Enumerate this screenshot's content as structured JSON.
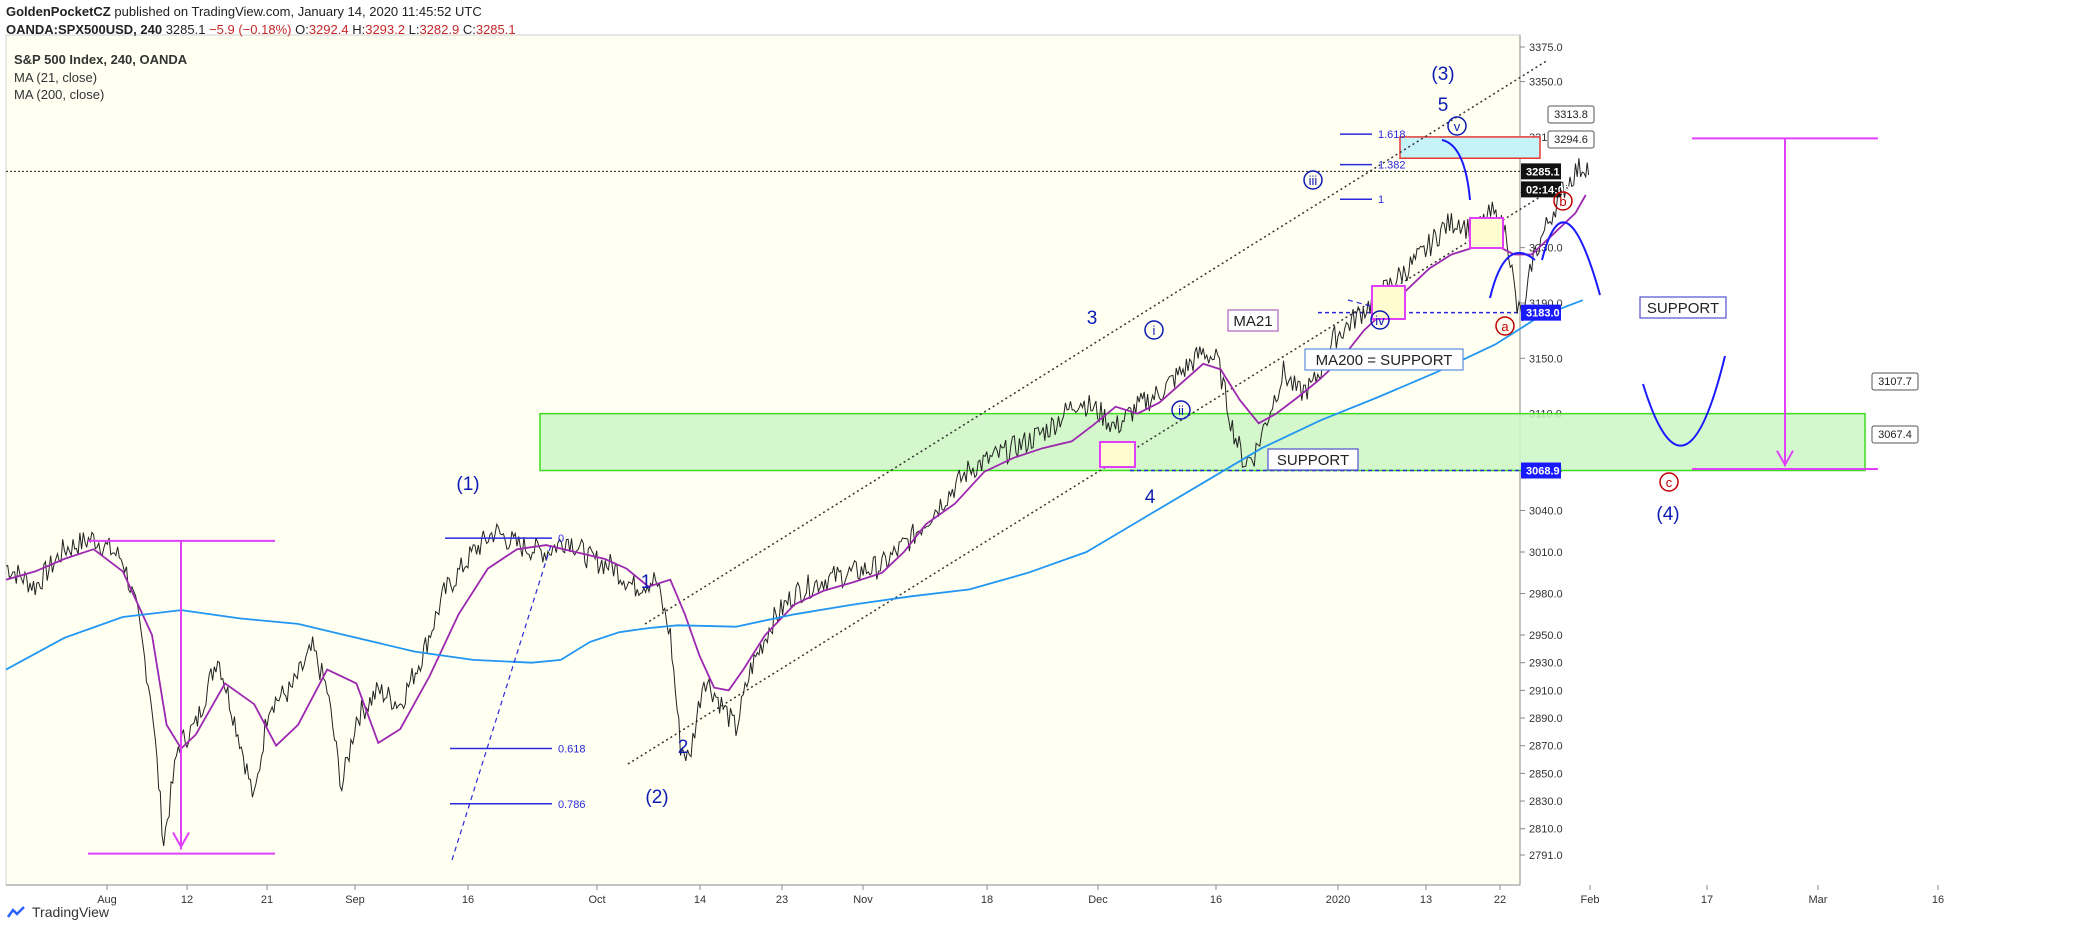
{
  "header": {
    "author": "GoldenPocketCZ",
    "published": "published on TradingView.com, January 14, 2020 11:45:52 UTC",
    "symbol": "OANDA:SPX500USD, 240",
    "last": "3285.1",
    "change": "−5.9 (−0.18%)",
    "o_label": "O:",
    "o": "3292.4",
    "h_label": "H:",
    "h": "3293.2",
    "l_label": "L:",
    "l": "3282.9",
    "c_label": "C:",
    "c": "3285.1"
  },
  "legend": {
    "title": "S&P 500 Index, 240, OANDA",
    "ma21": "MA (21, close)",
    "ma200": "MA (200, close)"
  },
  "footer": {
    "brand": "TradingView"
  },
  "colors": {
    "price": "#222222",
    "ma21": "#9c27b0",
    "ma200": "#2196f3",
    "wave": "#0d1bb5",
    "abc": "#c00000",
    "magenta": "#e040fb",
    "zone_green": "#ccf7c4",
    "zone_border": "#3ddc1f",
    "plot_bg": "#fffff2"
  },
  "chart_data": {
    "type": "line",
    "title": "S&P 500 Index, 240, OANDA",
    "x_ticks": [
      "Aug",
      "12",
      "21",
      "Sep",
      "16",
      "Oct",
      "14",
      "23",
      "Nov",
      "18",
      "Dec",
      "16",
      "2020",
      "13",
      "22",
      "Feb",
      "17",
      "Mar",
      "16"
    ],
    "y_ticks": [
      2791.0,
      2810.0,
      2830.0,
      2850.0,
      2870.0,
      2890.0,
      2910.0,
      2930.0,
      2950.0,
      2980.0,
      3010.0,
      3040.0,
      3070.0,
      3110.0,
      3150.0,
      3190.0,
      3230.0,
      3270.0,
      3310.0,
      3350.0,
      3375.0
    ],
    "ylim": [
      2780,
      3395
    ],
    "series": [
      {
        "name": "MA (21, close)",
        "key": "ma21",
        "points": [
          [
            0,
            2990
          ],
          [
            20,
            2996
          ],
          [
            40,
            3005
          ],
          [
            60,
            3012
          ],
          [
            80,
            2996
          ],
          [
            100,
            2950
          ],
          [
            110,
            2885
          ],
          [
            120,
            2868
          ],
          [
            130,
            2878
          ],
          [
            150,
            2915
          ],
          [
            170,
            2900
          ],
          [
            185,
            2870
          ],
          [
            200,
            2885
          ],
          [
            220,
            2925
          ],
          [
            240,
            2915
          ],
          [
            255,
            2872
          ],
          [
            270,
            2882
          ],
          [
            290,
            2920
          ],
          [
            310,
            2965
          ],
          [
            330,
            2998
          ],
          [
            350,
            3012
          ],
          [
            370,
            3015
          ],
          [
            390,
            3010
          ],
          [
            410,
            3005
          ],
          [
            425,
            2998
          ],
          [
            440,
            2985
          ],
          [
            455,
            2990
          ],
          [
            465,
            2965
          ],
          [
            475,
            2935
          ],
          [
            485,
            2912
          ],
          [
            495,
            2910
          ],
          [
            505,
            2925
          ],
          [
            520,
            2950
          ],
          [
            540,
            2972
          ],
          [
            560,
            2982
          ],
          [
            580,
            2988
          ],
          [
            600,
            2995
          ],
          [
            615,
            3010
          ],
          [
            630,
            3030
          ],
          [
            650,
            3045
          ],
          [
            670,
            3068
          ],
          [
            690,
            3078
          ],
          [
            710,
            3085
          ],
          [
            730,
            3090
          ],
          [
            745,
            3102
          ],
          [
            760,
            3115
          ],
          [
            775,
            3110
          ],
          [
            790,
            3118
          ],
          [
            805,
            3132
          ],
          [
            820,
            3146
          ],
          [
            832,
            3142
          ],
          [
            845,
            3120
          ],
          [
            858,
            3103
          ],
          [
            870,
            3110
          ],
          [
            885,
            3122
          ],
          [
            900,
            3135
          ],
          [
            915,
            3150
          ],
          [
            930,
            3170
          ],
          [
            945,
            3185
          ],
          [
            960,
            3200
          ],
          [
            975,
            3215
          ],
          [
            990,
            3225
          ],
          [
            1005,
            3230
          ],
          [
            1020,
            3232
          ],
          [
            1033,
            3225
          ],
          [
            1045,
            3225
          ],
          [
            1060,
            3240
          ],
          [
            1075,
            3255
          ],
          [
            1082,
            3268
          ]
        ]
      },
      {
        "name": "MA (200, close)",
        "key": "ma200",
        "points": [
          [
            0,
            2925
          ],
          [
            40,
            2948
          ],
          [
            80,
            2963
          ],
          [
            120,
            2968
          ],
          [
            160,
            2962
          ],
          [
            200,
            2958
          ],
          [
            240,
            2948
          ],
          [
            280,
            2938
          ],
          [
            320,
            2932
          ],
          [
            360,
            2930
          ],
          [
            380,
            2932
          ],
          [
            400,
            2945
          ],
          [
            420,
            2952
          ],
          [
            440,
            2955
          ],
          [
            460,
            2957
          ],
          [
            500,
            2956
          ],
          [
            540,
            2965
          ],
          [
            580,
            2972
          ],
          [
            620,
            2978
          ],
          [
            660,
            2983
          ],
          [
            700,
            2995
          ],
          [
            740,
            3010
          ],
          [
            780,
            3035
          ],
          [
            820,
            3060
          ],
          [
            860,
            3085
          ],
          [
            900,
            3105
          ],
          [
            940,
            3122
          ],
          [
            980,
            3140
          ],
          [
            1020,
            3160
          ],
          [
            1050,
            3180
          ],
          [
            1080,
            3192
          ]
        ]
      }
    ],
    "hlines": [
      {
        "label": "3183.0",
        "y": 3183.0
      },
      {
        "label": "3068.9",
        "y": 3068.9
      },
      {
        "label": "3285.1",
        "y": 3285.1
      }
    ],
    "price_tags": [
      "3285.1",
      "02:14:08",
      "3183.0",
      "3068.9"
    ],
    "boxes": [
      "3313.8",
      "3294.6",
      "3107.7",
      "3067.4"
    ],
    "fib_labels": [
      "0",
      "0.618",
      "0.786",
      "1.618",
      "1.382",
      "1"
    ],
    "wave_labels": [
      "(1)",
      "(2)",
      "(3)",
      "(4)",
      "1",
      "2",
      "3",
      "4",
      "5"
    ],
    "sub_labels": [
      "i",
      "ii",
      "iii",
      "iv",
      "v"
    ],
    "abc_labels": [
      "a",
      "b",
      "c"
    ],
    "annotations": [
      "SUPPORT",
      "SUPPORT",
      "MA21",
      "MA200 = SUPPORT"
    ]
  }
}
